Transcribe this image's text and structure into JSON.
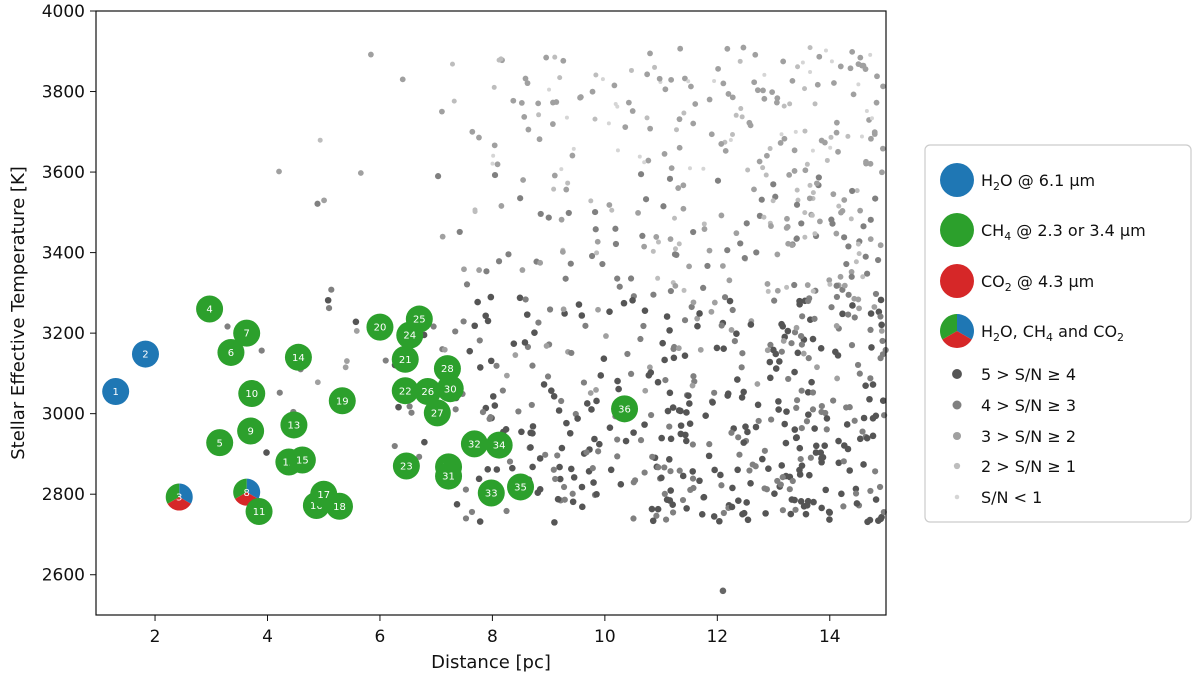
{
  "chart_data": {
    "type": "scatter",
    "xlabel": "Distance [pc]",
    "ylabel": "Stellar Effective Temperature [K]",
    "xlim": [
      0.95,
      15.0
    ],
    "ylim": [
      2500,
      4000
    ],
    "x_ticks": [
      2,
      4,
      6,
      8,
      10,
      12,
      14
    ],
    "y_ticks": [
      2600,
      2800,
      3000,
      3200,
      3400,
      3600,
      3800,
      4000
    ],
    "grid": false,
    "legend_placement": "right",
    "colors": {
      "h2o": "#1f77b4",
      "ch4": "#2ca02c",
      "co2": "#d62728"
    },
    "legend": [
      {
        "kind": "h2o",
        "text": "H",
        "sub": "2",
        "rest": "O @ 6.1 µm"
      },
      {
        "kind": "ch4",
        "text": "CH",
        "sub": "4",
        "rest": " @ 2.3 or 3.4 µm"
      },
      {
        "kind": "co2",
        "text": "CO",
        "sub": "2",
        "rest": " @ 4.3 µm"
      },
      {
        "kind": "all",
        "text": "H",
        "sub": "",
        "rest": "2O, CH4 and CO2"
      },
      {
        "kind": "sn",
        "shade": "#555555",
        "size": 5.5,
        "text": "5 > S/N ≥ 4"
      },
      {
        "kind": "sn",
        "shade": "#808080",
        "size": 5,
        "text": "4 > S/N ≥ 3"
      },
      {
        "kind": "sn",
        "shade": "#a0a0a0",
        "size": 4.5,
        "text": "3 > S/N ≥ 2"
      },
      {
        "kind": "sn",
        "shade": "#bdbdbd",
        "size": 3.5,
        "text": "2 > S/N ≥ 1"
      },
      {
        "kind": "sn",
        "shade": "#d5d5d5",
        "size": 2.5,
        "text": "S/N < 1"
      }
    ],
    "highlighted": [
      {
        "n": "1",
        "x": 1.3,
        "y": 3055,
        "type": "h2o"
      },
      {
        "n": "2",
        "x": 1.83,
        "y": 3148,
        "type": "h2o"
      },
      {
        "n": "3",
        "x": 2.43,
        "y": 2793,
        "type": "all"
      },
      {
        "n": "4",
        "x": 2.97,
        "y": 3260,
        "type": "ch4"
      },
      {
        "n": "5",
        "x": 3.15,
        "y": 2928,
        "type": "ch4"
      },
      {
        "n": "6",
        "x": 3.35,
        "y": 3152,
        "type": "ch4"
      },
      {
        "n": "7",
        "x": 3.63,
        "y": 3200,
        "type": "ch4"
      },
      {
        "n": "8",
        "x": 3.63,
        "y": 2805,
        "type": "all"
      },
      {
        "n": "9",
        "x": 3.7,
        "y": 2957,
        "type": "ch4"
      },
      {
        "n": "10",
        "x": 3.72,
        "y": 3050,
        "type": "ch4"
      },
      {
        "n": "11",
        "x": 3.85,
        "y": 2757,
        "type": "ch4"
      },
      {
        "n": "12",
        "x": 4.38,
        "y": 2880,
        "type": "ch4"
      },
      {
        "n": "13",
        "x": 4.47,
        "y": 2972,
        "type": "ch4"
      },
      {
        "n": "14",
        "x": 4.55,
        "y": 3140,
        "type": "ch4"
      },
      {
        "n": "15",
        "x": 4.62,
        "y": 2885,
        "type": "ch4"
      },
      {
        "n": "16",
        "x": 4.87,
        "y": 2772,
        "type": "ch4"
      },
      {
        "n": "17",
        "x": 5.0,
        "y": 2800,
        "type": "ch4"
      },
      {
        "n": "18",
        "x": 5.28,
        "y": 2770,
        "type": "ch4"
      },
      {
        "n": "19",
        "x": 5.33,
        "y": 3032,
        "type": "ch4"
      },
      {
        "n": "20",
        "x": 6.0,
        "y": 3215,
        "type": "ch4"
      },
      {
        "n": "21",
        "x": 6.45,
        "y": 3135,
        "type": "ch4"
      },
      {
        "n": "22",
        "x": 6.45,
        "y": 3057,
        "type": "ch4"
      },
      {
        "n": "23",
        "x": 6.47,
        "y": 2870,
        "type": "ch4"
      },
      {
        "n": "24",
        "x": 6.53,
        "y": 3195,
        "type": "ch4"
      },
      {
        "n": "25",
        "x": 6.7,
        "y": 3235,
        "type": "ch4"
      },
      {
        "n": "26",
        "x": 6.85,
        "y": 3055,
        "type": "ch4"
      },
      {
        "n": "27",
        "x": 7.02,
        "y": 3002,
        "type": "ch4"
      },
      {
        "n": "28",
        "x": 7.2,
        "y": 3112,
        "type": "ch4"
      },
      {
        "n": "29",
        "x": 7.22,
        "y": 2868,
        "type": "ch4"
      },
      {
        "n": "30",
        "x": 7.25,
        "y": 3062,
        "type": "ch4"
      },
      {
        "n": "31",
        "x": 7.22,
        "y": 2845,
        "type": "ch4"
      },
      {
        "n": "32",
        "x": 7.68,
        "y": 2925,
        "type": "ch4"
      },
      {
        "n": "33",
        "x": 7.98,
        "y": 2803,
        "type": "ch4"
      },
      {
        "n": "34",
        "x": 8.12,
        "y": 2922,
        "type": "ch4"
      },
      {
        "n": "35",
        "x": 8.5,
        "y": 2818,
        "type": "ch4"
      },
      {
        "n": "36",
        "x": 10.35,
        "y": 3012,
        "type": "ch4"
      }
    ]
  }
}
